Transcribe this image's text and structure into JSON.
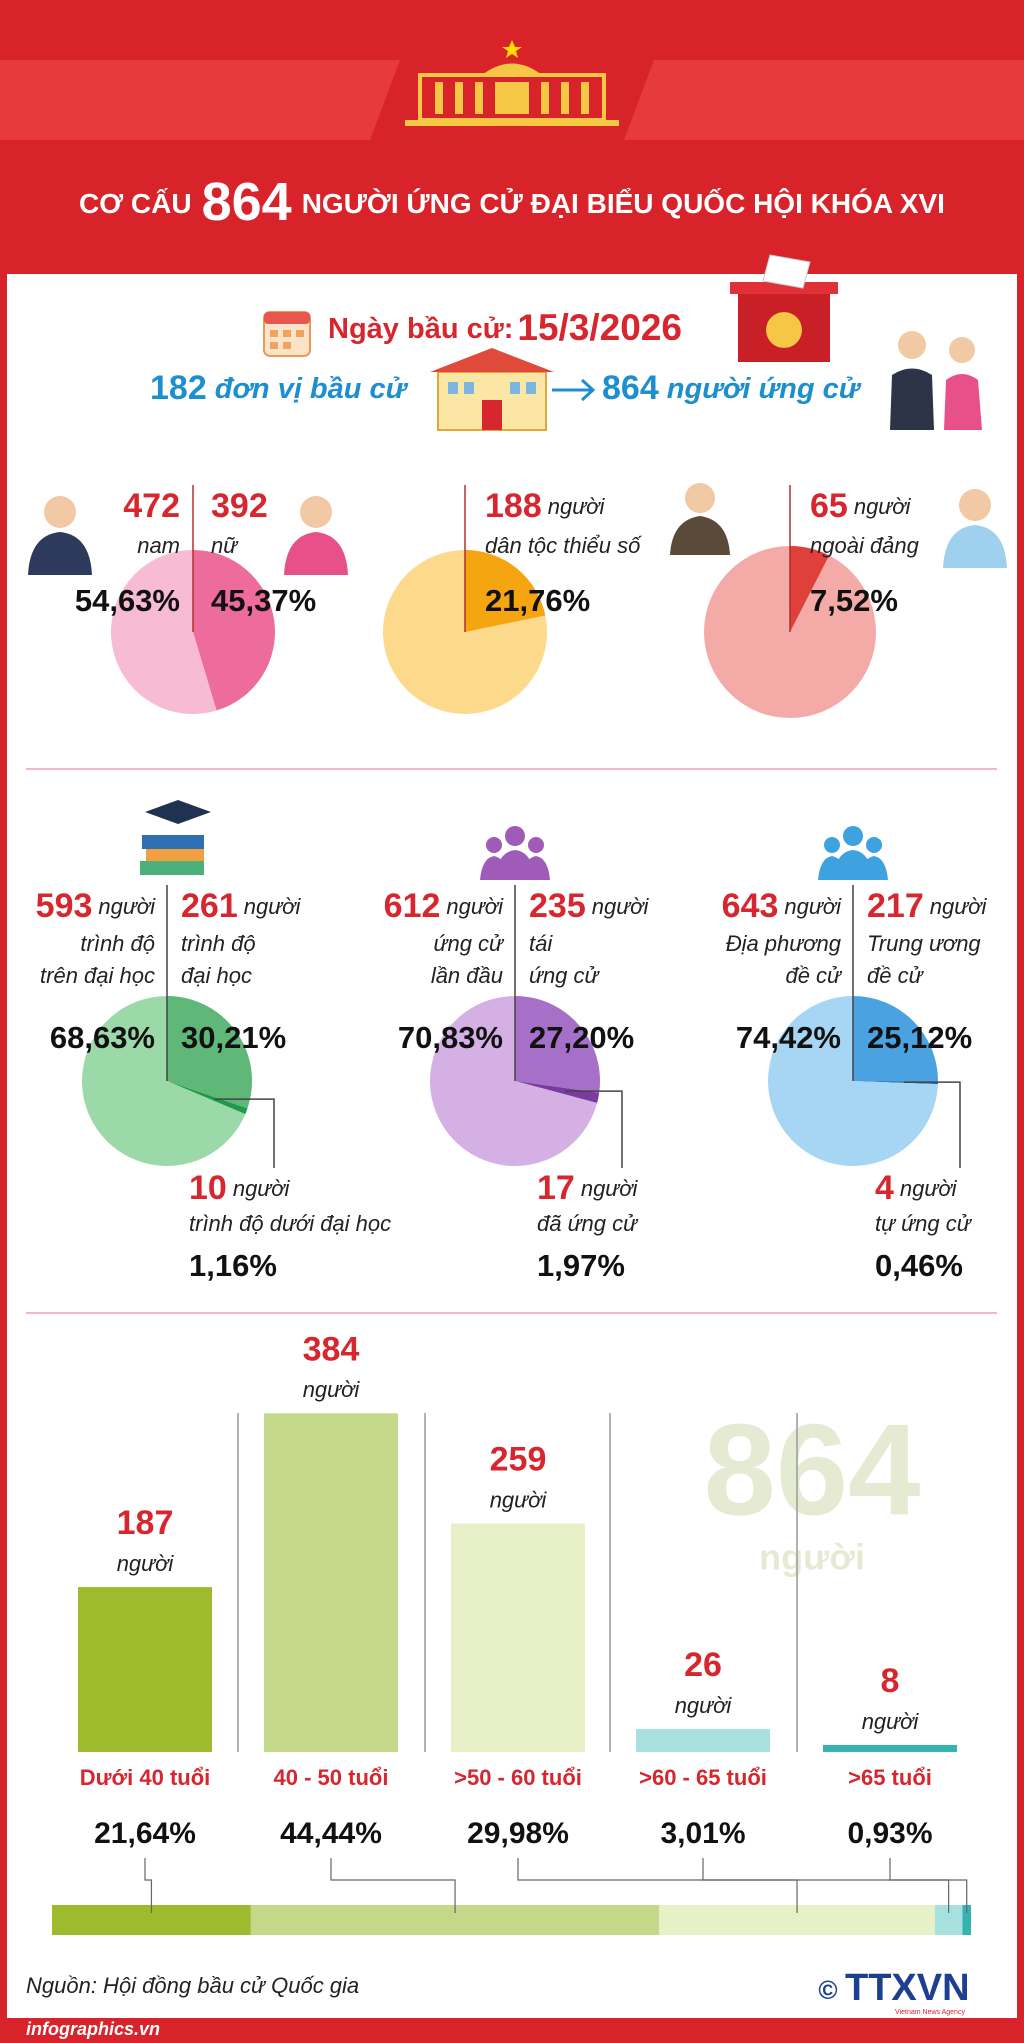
{
  "header": {
    "title_start": "CƠ CẤU",
    "title_number": "864",
    "title_end": "NGƯỜI ỨNG CỬ ĐẠI BIỂU QUỐC HỘI KHÓA XVI"
  },
  "summary": {
    "date_label": "Ngày bầu cử:",
    "date": "15/3/2026",
    "units_count": "182",
    "units_label": "đơn vị bầu cử",
    "candidates_count": "864",
    "candidates_label": "người ứng cử"
  },
  "pies": [
    {
      "slices": [
        {
          "count": 472,
          "label": [
            "nam"
          ],
          "share": {
            "value": 54.63,
            "label": "54,63%"
          },
          "color": "#f7bcd3"
        },
        {
          "count": 392,
          "label": [
            "nữ"
          ],
          "share": {
            "value": 45.37,
            "label": "45,37%"
          },
          "color": "#ee6c9c"
        }
      ]
    },
    {
      "rest_color": "#fdd98c",
      "slices": [
        {
          "count": 188,
          "unit": "người",
          "label": [
            "dân tộc thiểu số"
          ],
          "share": {
            "value": 21.76,
            "label": "21,76%"
          },
          "color": "#f5a50f"
        }
      ]
    },
    {
      "rest_color": "#f4aaa7",
      "slices": [
        {
          "count": 65,
          "unit": "người",
          "label": [
            "ngoài đảng"
          ],
          "share": {
            "value": 7.52,
            "label": "7,52%"
          },
          "color": "#e0403a"
        }
      ]
    },
    {
      "slices": [
        {
          "count": 593,
          "unit": "người",
          "label": [
            "trình độ",
            "trên đại học"
          ],
          "share": {
            "value": 68.63,
            "label": "68,63%"
          },
          "color": "#9bd9a8"
        },
        {
          "count": 261,
          "unit": "người",
          "label": [
            "trình độ",
            "đại học"
          ],
          "share": {
            "value": 30.21,
            "label": "30,21%"
          },
          "color": "#5fb878"
        },
        {
          "count": 10,
          "unit": "người",
          "label": [
            "trình độ dưới đại học"
          ],
          "share": {
            "value": 1.16,
            "label": "1,16%"
          },
          "color": "#1f9a4a"
        }
      ]
    },
    {
      "slices": [
        {
          "count": 612,
          "unit": "người",
          "label": [
            "ứng cử",
            "lần đầu"
          ],
          "share": {
            "value": 70.83,
            "label": "70,83%"
          },
          "color": "#d4b0e4"
        },
        {
          "count": 235,
          "unit": "người",
          "label": [
            "tái",
            "ứng cử"
          ],
          "share": {
            "value": 27.2,
            "label": "27,20%"
          },
          "color": "#a66fc8"
        },
        {
          "count": 17,
          "unit": "người",
          "label": [
            "đã ứng cử"
          ],
          "share": {
            "value": 1.97,
            "label": "1,97%"
          },
          "color": "#7a3aa0"
        }
      ]
    },
    {
      "slices": [
        {
          "count": 643,
          "unit": "người",
          "label": [
            "Địa phương",
            "đề cử"
          ],
          "share": {
            "value": 74.42,
            "label": "74,42%"
          },
          "color": "#a6d6f4"
        },
        {
          "count": 217,
          "unit": "người",
          "label": [
            "Trung ương",
            "đề cử"
          ],
          "share": {
            "value": 25.12,
            "label": "25,12%"
          },
          "color": "#4aa3e0"
        },
        {
          "count": 4,
          "unit": "người",
          "label": [
            "tự ứng cử"
          ],
          "share": {
            "value": 0.46,
            "label": "0,46%"
          },
          "color": "#1e6fb8"
        }
      ]
    }
  ],
  "age_chart": {
    "type": "bar",
    "categories": [
      "Dưới 40 tuổi",
      "40 - 50 tuổi",
      ">50 - 60 tuổi",
      ">60 - 65 tuổi",
      ">65 tuổi"
    ],
    "values": [
      187,
      384,
      259,
      26,
      8
    ],
    "unit": "người",
    "shares": [
      {
        "value": 21.64,
        "label": "21,64%"
      },
      {
        "value": 44.44,
        "label": "44,44%"
      },
      {
        "value": 29.98,
        "label": "29,98%"
      },
      {
        "value": 3.01,
        "label": "3,01%"
      },
      {
        "value": 0.93,
        "label": "0,93%"
      }
    ],
    "colors": [
      "#9dbb2c",
      "#c3d889",
      "#e8f0c8",
      "#a7e0df",
      "#36b3b0"
    ]
  },
  "footer": {
    "source": "Nguồn: Hội đồng bầu cử Quốc gia",
    "site": "infographics.vn",
    "copyright": "©",
    "logo": "TTXVN",
    "logo_subtitle": "Vietnam News Agency"
  }
}
